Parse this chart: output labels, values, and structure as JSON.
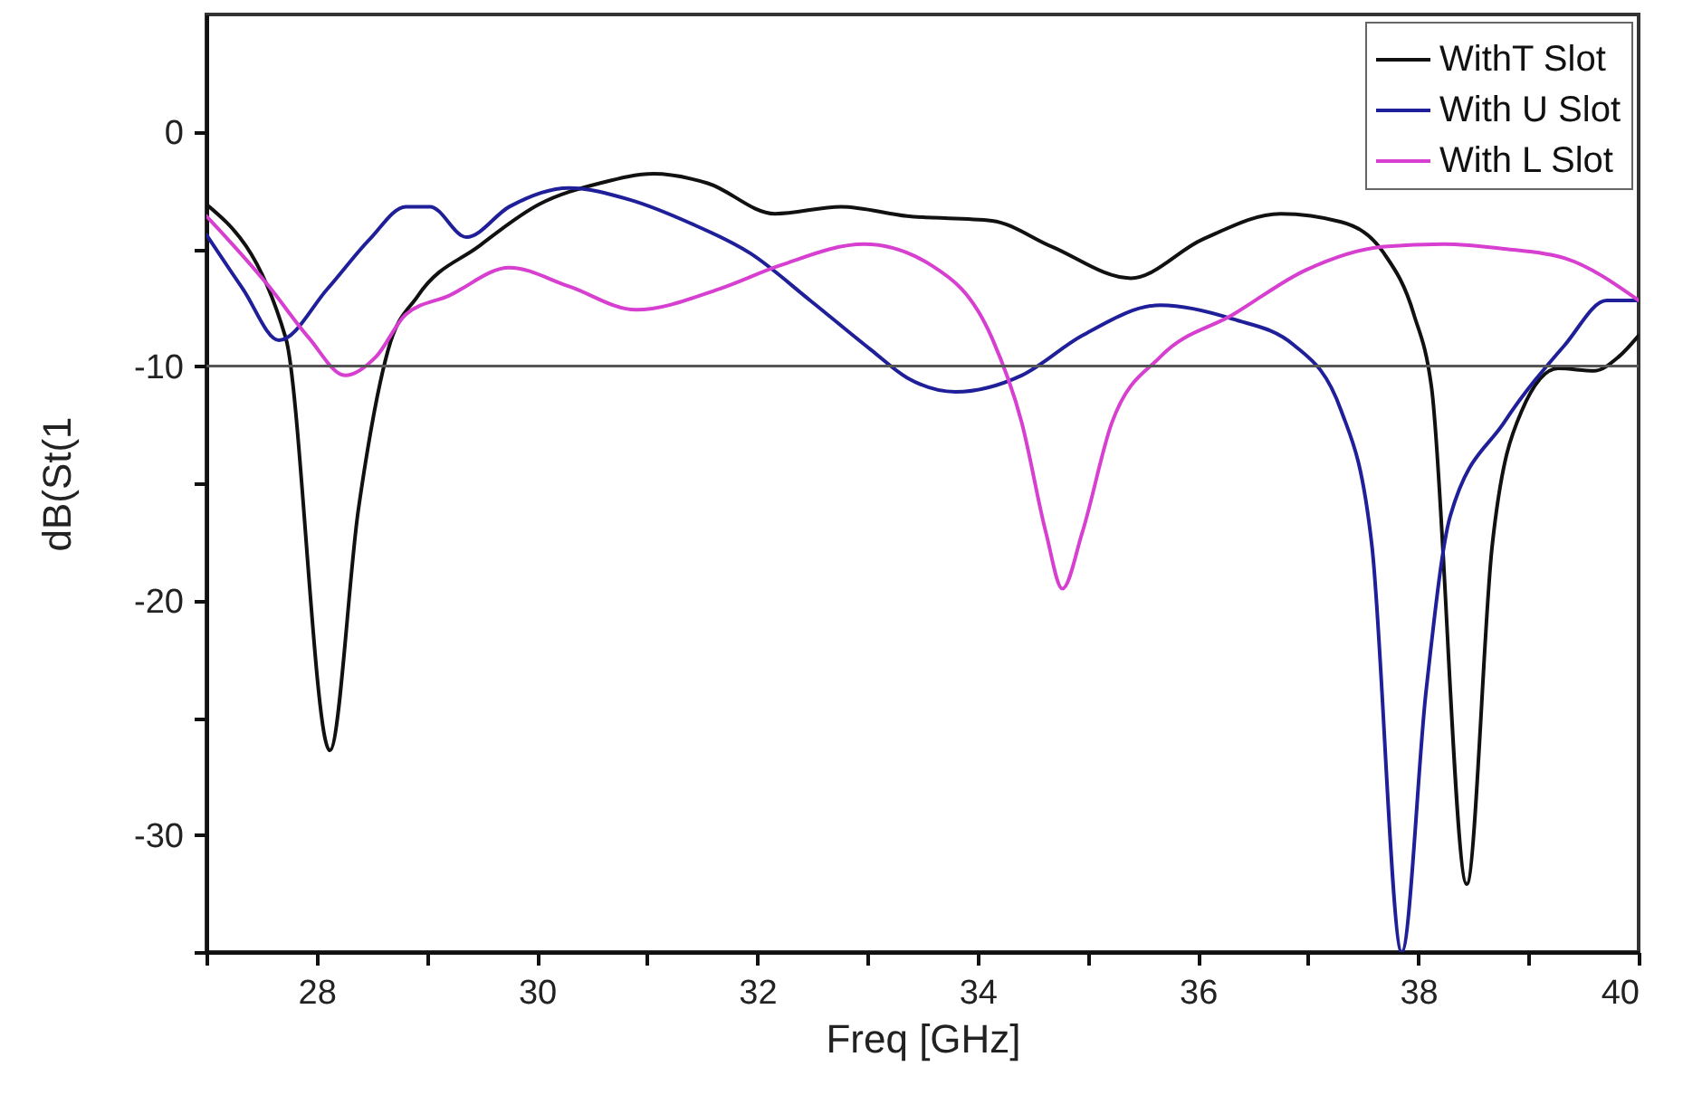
{
  "chart_data": {
    "type": "line",
    "xlabel": "Freq [GHz]",
    "ylabel": "dB(St(1",
    "xlim": [
      27,
      40
    ],
    "ylim": [
      -35,
      5
    ],
    "xticks": [
      {
        "value": 27,
        "label": null
      },
      28,
      {
        "value": 29,
        "label": null
      },
      30,
      {
        "value": 31,
        "label": null
      },
      32,
      {
        "value": 33,
        "label": null
      },
      34,
      {
        "value": 35,
        "label": null
      },
      36,
      {
        "value": 37,
        "label": null
      },
      38,
      {
        "value": 39,
        "label": null
      },
      40
    ],
    "yticks": [
      {
        "value": -35,
        "label": null
      },
      -30,
      {
        "value": -25,
        "label": null
      },
      -20,
      {
        "value": -15,
        "label": null
      },
      -10,
      {
        "value": -5,
        "label": null
      },
      0
    ],
    "grid": false,
    "legend": "top right",
    "marker": "none",
    "line_style": "solid",
    "ref_lines": [
      {
        "axis": "y",
        "value": -10,
        "color": "#555555"
      }
    ],
    "series": [
      {
        "name": "WithT Slot",
        "color": "#111111",
        "x": [
          27,
          27.72,
          28.12,
          28.38,
          28.65,
          28.92,
          29.47,
          30.02,
          30.57,
          31.06,
          31.55,
          32.16,
          32.76,
          33.36,
          34.13,
          34.67,
          35.39,
          36.04,
          36.75,
          37.3,
          37.69,
          37.96,
          38.12,
          38.44,
          38.67,
          38.94,
          39.27,
          39.6,
          39.82,
          40
        ],
        "values": [
          -3.1,
          -8.8,
          -26.4,
          -16.1,
          -9.3,
          -7.0,
          -4.9,
          -3.1,
          -2.2,
          -1.8,
          -2.2,
          -3.5,
          -3.2,
          -3.6,
          -3.8,
          -4.9,
          -6.25,
          -4.6,
          -3.5,
          -3.85,
          -5.2,
          -7.8,
          -10.9,
          -32.1,
          -17.7,
          -11.9,
          -10.1,
          -10.2,
          -9.6,
          -8.7
        ]
      },
      {
        "name": "With U Slot",
        "color": "#1f1f9a",
        "x": [
          27,
          27.33,
          27.66,
          28.1,
          28.48,
          28.81,
          29.03,
          29.36,
          29.75,
          30.29,
          30.84,
          31.39,
          31.94,
          32.48,
          33.03,
          33.36,
          33.8,
          34.4,
          34.95,
          35.66,
          36.32,
          36.87,
          37.3,
          37.58,
          37.85,
          38.07,
          38.29,
          38.78,
          39.33,
          39.71,
          40
        ],
        "values": [
          -4.4,
          -6.7,
          -8.9,
          -6.7,
          -4.6,
          -3.2,
          -3.2,
          -4.5,
          -3.2,
          -2.4,
          -2.9,
          -3.9,
          -5.2,
          -7.2,
          -9.3,
          -10.5,
          -11.1,
          -10.4,
          -8.7,
          -7.4,
          -8.0,
          -9.1,
          -11.9,
          -17.7,
          -35,
          -23.9,
          -16.4,
          -12.4,
          -9.1,
          -7.2,
          -7.2
        ]
      },
      {
        "name": "With L Slot",
        "color": "#d63fd0",
        "x": [
          27,
          27.55,
          27.93,
          28.26,
          28.54,
          28.81,
          29.2,
          29.75,
          30.29,
          30.9,
          31.66,
          32.21,
          32.97,
          33.58,
          34.13,
          34.4,
          34.62,
          34.77,
          34.95,
          35.22,
          35.66,
          36.32,
          36.98,
          37.69,
          38.23,
          38.78,
          39.33,
          40
        ],
        "values": [
          -3.6,
          -6.5,
          -8.8,
          -10.4,
          -9.6,
          -7.8,
          -7.0,
          -5.8,
          -6.6,
          -7.6,
          -6.7,
          -5.7,
          -4.8,
          -5.7,
          -8.8,
          -12.4,
          -17.1,
          -19.5,
          -17.1,
          -12.4,
          -9.6,
          -7.8,
          -5.9,
          -4.9,
          -4.8,
          -5.0,
          -5.4,
          -7.2
        ]
      }
    ]
  }
}
